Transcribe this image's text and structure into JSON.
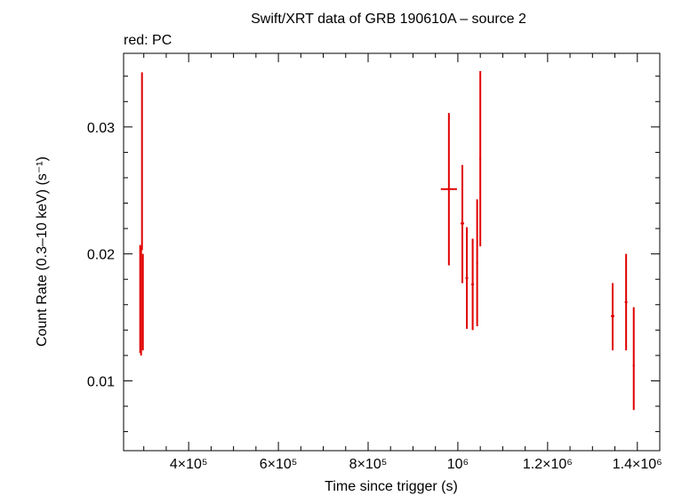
{
  "chart_data": {
    "type": "scatter",
    "title": "Swift/XRT data of GRB 190610A – source 2",
    "subtitle": "red: PC",
    "xlabel": "Time since trigger (s)",
    "ylabel": "Count Rate (0.3–10 keV) (s⁻¹)",
    "xlim": [
      255000,
      1450000
    ],
    "ylim": [
      0.0045,
      0.0358
    ],
    "x_ticks": [
      {
        "value": 400000,
        "label": "4×10⁵"
      },
      {
        "value": 600000,
        "label": "6×10⁵"
      },
      {
        "value": 800000,
        "label": "8×10⁵"
      },
      {
        "value": 1000000,
        "label": "10⁶"
      },
      {
        "value": 1200000,
        "label": "1.2×10⁶"
      },
      {
        "value": 1400000,
        "label": "1.4×10⁶"
      }
    ],
    "y_ticks": [
      {
        "value": 0.01,
        "label": "0.01"
      },
      {
        "value": 0.02,
        "label": "0.02"
      },
      {
        "value": 0.03,
        "label": "0.03"
      }
    ],
    "grid": false,
    "series": [
      {
        "color": "#e00000",
        "points": [
          {
            "x": 292000,
            "xerr": 1000,
            "y": 0.0165,
            "ylo": 0.0122,
            "yhi": 0.0207
          },
          {
            "x": 294000,
            "xerr": 1000,
            "y": 0.0163,
            "ylo": 0.012,
            "yhi": 0.0205
          },
          {
            "x": 296000,
            "xerr": 1000,
            "y": 0.0273,
            "ylo": 0.0203,
            "yhi": 0.0343
          },
          {
            "x": 298000,
            "xerr": 1000,
            "y": 0.0162,
            "ylo": 0.0124,
            "yhi": 0.02
          },
          {
            "x": 980000,
            "xerr": 18000,
            "y": 0.0251,
            "ylo": 0.0191,
            "yhi": 0.0311
          },
          {
            "x": 1010000,
            "xerr": 4000,
            "y": 0.0224,
            "ylo": 0.0177,
            "yhi": 0.027
          },
          {
            "x": 1020000,
            "xerr": 3000,
            "y": 0.0181,
            "ylo": 0.0141,
            "yhi": 0.0221
          },
          {
            "x": 1033000,
            "xerr": 3000,
            "y": 0.0176,
            "ylo": 0.014,
            "yhi": 0.0212
          },
          {
            "x": 1043000,
            "xerr": 2000,
            "y": 0.0193,
            "ylo": 0.0143,
            "yhi": 0.0243
          },
          {
            "x": 1050000,
            "xerr": 2000,
            "y": 0.0275,
            "ylo": 0.0206,
            "yhi": 0.0344
          },
          {
            "x": 1345000,
            "xerr": 4000,
            "y": 0.0151,
            "ylo": 0.0124,
            "yhi": 0.0177
          },
          {
            "x": 1375000,
            "xerr": 3000,
            "y": 0.0162,
            "ylo": 0.0124,
            "yhi": 0.02
          },
          {
            "x": 1392000,
            "xerr": 2000,
            "y": 0.0112,
            "ylo": 0.0077,
            "yhi": 0.0158
          }
        ]
      }
    ]
  }
}
